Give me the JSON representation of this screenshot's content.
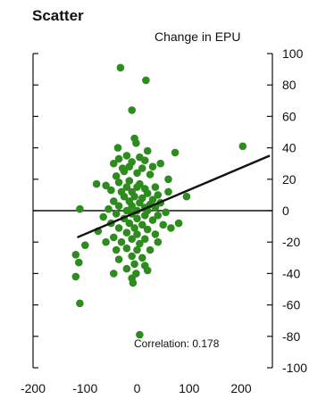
{
  "chart_data": {
    "type": "scatter",
    "title": "Scatter",
    "xlabel": "",
    "ylabel": "Change in EPU",
    "xlim": [
      -200,
      260
    ],
    "ylim": [
      -100,
      100
    ],
    "xticks": [
      -200,
      -100,
      0,
      100,
      200
    ],
    "yticks": [
      100,
      80,
      60,
      40,
      20,
      0,
      -20,
      -40,
      -60,
      -80,
      -100
    ],
    "y_axis_side": "right",
    "grid": false,
    "legend": "none",
    "annotation": "Correlation: 0.178",
    "colors": {
      "points": "#2e8b1e",
      "trend": "#111111",
      "zero_line": "#111111"
    },
    "trend_line": {
      "x": [
        -115,
        255
      ],
      "y": [
        -17,
        35
      ]
    },
    "series": [
      {
        "points": [
          [
            -32,
            91
          ],
          [
            17,
            83
          ],
          [
            -10,
            64
          ],
          [
            -5,
            46
          ],
          [
            -2,
            43
          ],
          [
            203,
            41
          ],
          [
            -37,
            40
          ],
          [
            20,
            38
          ],
          [
            73,
            37
          ],
          [
            -20,
            35
          ],
          [
            -35,
            33
          ],
          [
            5,
            34
          ],
          [
            45,
            30
          ],
          [
            -10,
            31
          ],
          [
            -45,
            30
          ],
          [
            15,
            32
          ],
          [
            30,
            28
          ],
          [
            -28,
            27
          ],
          [
            -15,
            28
          ],
          [
            10,
            27
          ],
          [
            -25,
            25
          ],
          [
            0,
            24
          ],
          [
            -40,
            22
          ],
          [
            25,
            23
          ],
          [
            60,
            20
          ],
          [
            -78,
            17
          ],
          [
            -60,
            16
          ],
          [
            -35,
            18
          ],
          [
            -15,
            19
          ],
          [
            5,
            17
          ],
          [
            35,
            15
          ],
          [
            -20,
            15
          ],
          [
            0,
            15
          ],
          [
            15,
            14
          ],
          [
            -50,
            13
          ],
          [
            -30,
            12
          ],
          [
            -10,
            12
          ],
          [
            20,
            11
          ],
          [
            40,
            10
          ],
          [
            60,
            12
          ],
          [
            95,
            9
          ],
          [
            -25,
            9
          ],
          [
            -5,
            9
          ],
          [
            10,
            8
          ],
          [
            30,
            7
          ],
          [
            -45,
            6
          ],
          [
            -15,
            6
          ],
          [
            5,
            5
          ],
          [
            25,
            4
          ],
          [
            45,
            5
          ],
          [
            -35,
            3
          ],
          [
            -10,
            3
          ],
          [
            15,
            2
          ],
          [
            35,
            2
          ],
          [
            -55,
            1
          ],
          [
            -20,
            0
          ],
          [
            0,
            0
          ],
          [
            20,
            0
          ],
          [
            55,
            -1
          ],
          [
            -110,
            1
          ],
          [
            -40,
            -2
          ],
          [
            -10,
            -2
          ],
          [
            15,
            -3
          ],
          [
            40,
            -3
          ],
          [
            -65,
            -4
          ],
          [
            -25,
            -5
          ],
          [
            0,
            -5
          ],
          [
            30,
            -6
          ],
          [
            -50,
            -8
          ],
          [
            -15,
            -8
          ],
          [
            10,
            -9
          ],
          [
            50,
            -9
          ],
          [
            80,
            -8
          ],
          [
            -35,
            -11
          ],
          [
            -5,
            -11
          ],
          [
            20,
            -12
          ],
          [
            65,
            -11
          ],
          [
            -75,
            -13
          ],
          [
            -20,
            -14
          ],
          [
            0,
            -15
          ],
          [
            35,
            -15
          ],
          [
            -45,
            -17
          ],
          [
            -10,
            -18
          ],
          [
            15,
            -18
          ],
          [
            -60,
            -20
          ],
          [
            -30,
            -20
          ],
          [
            5,
            -21
          ],
          [
            40,
            -20
          ],
          [
            -100,
            -22
          ],
          [
            -20,
            -24
          ],
          [
            -40,
            -25
          ],
          [
            0,
            -25
          ],
          [
            25,
            -25
          ],
          [
            -118,
            -28
          ],
          [
            -10,
            -29
          ],
          [
            10,
            -30
          ],
          [
            -112,
            -33
          ],
          [
            -35,
            -31
          ],
          [
            -5,
            -34
          ],
          [
            15,
            -35
          ],
          [
            -20,
            -37
          ],
          [
            -2,
            -40
          ],
          [
            20,
            -38
          ],
          [
            -45,
            -40
          ],
          [
            -10,
            -43
          ],
          [
            -118,
            -42
          ],
          [
            -8,
            -46
          ],
          [
            -110,
            -59
          ],
          [
            5,
            -79
          ]
        ]
      }
    ]
  }
}
